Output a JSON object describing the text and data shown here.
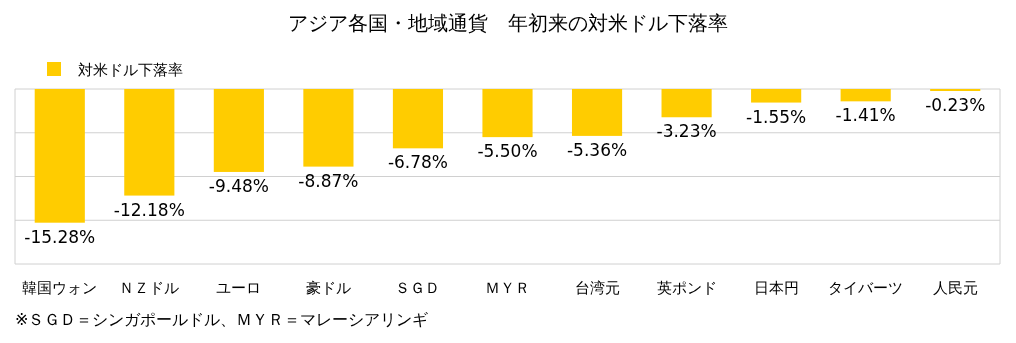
{
  "chart_data": {
    "type": "bar",
    "title": "アジア各国・地域通貨　年初来の対米ドル下落率",
    "categories": [
      "韓国ウォン",
      "ＮＺドル",
      "ユーロ",
      "豪ドル",
      "ＳＧＤ",
      "ＭＹＲ",
      "台湾元",
      "英ポンド",
      "日本円",
      "タイバーツ",
      "人民元"
    ],
    "series": [
      {
        "name": "対米ドル下落率",
        "color": "#ffcc00",
        "values": [
          -15.28,
          -12.18,
          -9.48,
          -8.87,
          -6.78,
          -5.5,
          -5.36,
          -3.23,
          -1.55,
          -1.41,
          -0.23
        ],
        "value_labels": [
          "-15.28%",
          "-12.18%",
          "-9.48%",
          "-8.87%",
          "-6.78%",
          "-5.50%",
          "-5.36%",
          "-3.23%",
          "-1.55%",
          "-1.41%",
          "-0.23%"
        ]
      }
    ],
    "ylim": [
      -20,
      0
    ],
    "yticks": [
      {
        "value": -20,
        "label": null
      },
      {
        "value": -15,
        "label": null
      },
      {
        "value": -10,
        "label": null
      },
      {
        "value": -5,
        "label": null
      },
      {
        "value": 0,
        "label": null
      }
    ],
    "grid": "y",
    "legend": "top left",
    "tick_labels": "x",
    "annotations": [
      "※ＳＧＤ＝シンガポールドル、ＭＹＲ＝マレーシアリンギ"
    ]
  }
}
